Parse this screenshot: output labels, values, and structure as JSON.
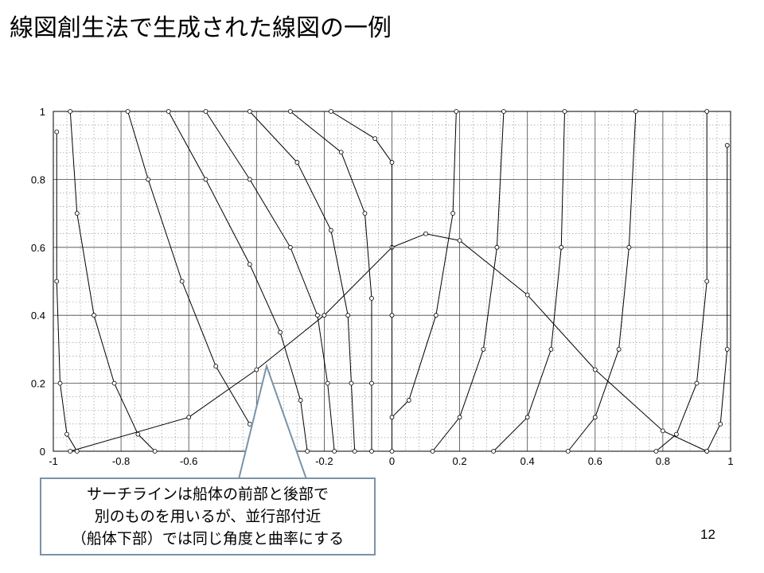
{
  "title": "線図創生法で生成された線図の一例",
  "chart_data": {
    "type": "line",
    "xlim": [
      -1,
      1
    ],
    "ylim": [
      0,
      1
    ],
    "xticks": [
      -1,
      -0.8,
      -0.6,
      -0.4,
      -0.2,
      0,
      0.2,
      0.4,
      0.6,
      0.8,
      1
    ],
    "yticks": [
      0,
      0.2,
      0.4,
      0.6,
      0.8,
      1
    ],
    "grid": true,
    "series": [
      {
        "color": "#000000",
        "x": [
          -0.95,
          -0.6,
          -0.4,
          -0.2,
          0,
          0.1,
          0.2,
          0.4,
          0.6,
          0.8,
          0.93
        ],
        "y": [
          0,
          0.1,
          0.24,
          0.4,
          0.6,
          0.64,
          0.62,
          0.46,
          0.24,
          0.06,
          0
        ]
      },
      {
        "color": "#000000",
        "x": [
          -0.99,
          -0.99,
          -0.98,
          -0.96,
          -0.93
        ],
        "y": [
          0.94,
          0.5,
          0.2,
          0.05,
          0
        ]
      },
      {
        "color": "#000000",
        "x": [
          -0.95,
          -0.93,
          -0.88,
          -0.82,
          -0.75,
          -0.7
        ],
        "y": [
          1,
          0.7,
          0.4,
          0.2,
          0.05,
          0
        ]
      },
      {
        "color": "#000000",
        "x": [
          -0.78,
          -0.72,
          -0.62,
          -0.52,
          -0.42,
          -0.35
        ],
        "y": [
          1,
          0.8,
          0.5,
          0.25,
          0.08,
          0
        ]
      },
      {
        "color": "#000000",
        "x": [
          -0.66,
          -0.55,
          -0.42,
          -0.33,
          -0.27,
          -0.25
        ],
        "y": [
          1,
          0.8,
          0.55,
          0.35,
          0.15,
          0
        ]
      },
      {
        "color": "#000000",
        "x": [
          -0.55,
          -0.42,
          -0.3,
          -0.22,
          -0.19,
          -0.17
        ],
        "y": [
          1,
          0.8,
          0.6,
          0.4,
          0.2,
          0
        ]
      },
      {
        "color": "#000000",
        "x": [
          -0.42,
          -0.28,
          -0.18,
          -0.13,
          -0.12,
          -0.11
        ],
        "y": [
          1,
          0.85,
          0.65,
          0.4,
          0.2,
          0
        ]
      },
      {
        "color": "#000000",
        "x": [
          -0.3,
          -0.15,
          -0.08,
          -0.06,
          -0.06,
          -0.06
        ],
        "y": [
          1,
          0.88,
          0.7,
          0.45,
          0.2,
          0
        ]
      },
      {
        "color": "#000000",
        "x": [
          -0.18,
          -0.05,
          0,
          0,
          0
        ],
        "y": [
          1,
          0.92,
          0.85,
          0.4,
          0
        ]
      },
      {
        "color": "#000000",
        "x": [
          0.19,
          0.18,
          0.13,
          0.05,
          0
        ],
        "y": [
          1,
          0.7,
          0.4,
          0.15,
          0.1
        ]
      },
      {
        "color": "#000000",
        "x": [
          0.33,
          0.31,
          0.27,
          0.2,
          0.12
        ],
        "y": [
          1,
          0.6,
          0.3,
          0.1,
          0
        ]
      },
      {
        "color": "#000000",
        "x": [
          0.51,
          0.5,
          0.47,
          0.4,
          0.3
        ],
        "y": [
          1,
          0.6,
          0.3,
          0.1,
          0
        ]
      },
      {
        "color": "#000000",
        "x": [
          0.72,
          0.7,
          0.67,
          0.6,
          0.52
        ],
        "y": [
          1,
          0.6,
          0.3,
          0.1,
          0
        ]
      },
      {
        "color": "#000000",
        "x": [
          0.93,
          0.93,
          0.9,
          0.84,
          0.78
        ],
        "y": [
          1,
          0.5,
          0.2,
          0.05,
          0
        ]
      },
      {
        "color": "#000000",
        "x": [
          0.99,
          0.99,
          0.97,
          0.93
        ],
        "y": [
          0.9,
          0.3,
          0.08,
          0
        ]
      }
    ]
  },
  "callout": {
    "lines": [
      "サーチラインは船体の前部と後部で",
      "別のものを用いるが、並行部付近",
      "（船体下部）では同じ角度と曲率にする"
    ]
  },
  "page_number": "12"
}
